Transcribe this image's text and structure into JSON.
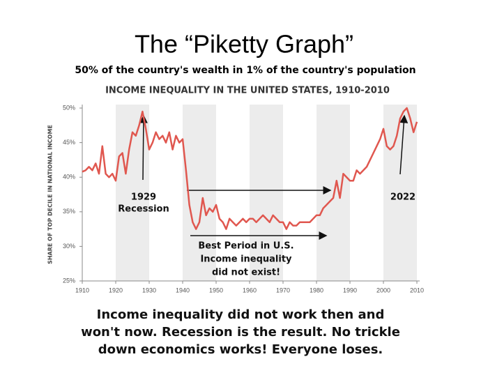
{
  "header": {
    "title": "The “Piketty Graph”",
    "subtitle": "50% of the country's wealth in 1% of the country's population"
  },
  "chart_data": {
    "type": "line",
    "title": "INCOME INEQUALITY IN THE UNITED STATES, 1910-2010",
    "y_label": "SHARE OF TOP DECILE IN NATIONAL INCOME",
    "color": "#e0574f",
    "x": [
      1910,
      1911,
      1912,
      1913,
      1914,
      1915,
      1916,
      1917,
      1918,
      1919,
      1920,
      1921,
      1922,
      1923,
      1924,
      1925,
      1926,
      1927,
      1928,
      1929,
      1930,
      1931,
      1932,
      1933,
      1934,
      1935,
      1936,
      1937,
      1938,
      1939,
      1940,
      1941,
      1942,
      1943,
      1944,
      1945,
      1946,
      1947,
      1948,
      1949,
      1950,
      1951,
      1952,
      1953,
      1954,
      1955,
      1956,
      1957,
      1958,
      1959,
      1960,
      1961,
      1962,
      1963,
      1964,
      1965,
      1966,
      1967,
      1968,
      1969,
      1970,
      1971,
      1972,
      1973,
      1974,
      1975,
      1976,
      1977,
      1978,
      1979,
      1980,
      1981,
      1982,
      1983,
      1984,
      1985,
      1986,
      1987,
      1988,
      1989,
      1990,
      1991,
      1992,
      1993,
      1994,
      1995,
      1996,
      1997,
      1998,
      1999,
      2000,
      2001,
      2002,
      2003,
      2004,
      2005,
      2006,
      2007,
      2008,
      2009,
      2010
    ],
    "values": [
      40.8,
      41,
      41.5,
      41,
      42,
      40.5,
      44.5,
      40.5,
      40,
      40.5,
      39.5,
      43,
      43.5,
      40.5,
      44,
      46.5,
      46,
      47.5,
      49.5,
      47,
      44,
      45,
      46.5,
      45.5,
      46,
      45,
      46.5,
      44,
      46,
      45,
      45.5,
      41,
      36,
      33.5,
      32.5,
      33.5,
      37,
      34.5,
      35.5,
      35,
      36,
      34,
      33.5,
      32.5,
      34,
      33.5,
      33,
      33.5,
      34,
      33.5,
      34,
      34,
      33.5,
      34,
      34.5,
      34,
      33.5,
      34.5,
      34,
      33.5,
      33.5,
      32.5,
      33.5,
      33,
      33,
      33.5,
      33.5,
      33.5,
      33.5,
      34,
      34.5,
      34.5,
      35.5,
      36,
      36.5,
      37,
      39.5,
      37,
      40.5,
      40,
      39.5,
      39.5,
      41,
      40.5,
      41,
      41.5,
      42.5,
      43.5,
      44.5,
      45.5,
      47,
      44.5,
      44,
      44.5,
      46,
      48.5,
      49.5,
      50,
      48.5,
      46.5,
      48
    ],
    "xlim": [
      1910,
      2010
    ],
    "xticks": [
      1910,
      1920,
      1930,
      1940,
      1950,
      1960,
      1970,
      1980,
      1990,
      2000,
      2010
    ],
    "ylim": [
      25,
      50
    ],
    "yticks": [
      {
        "value": 25,
        "label": "25%"
      },
      {
        "value": 30,
        "label": "30%"
      },
      {
        "value": 35,
        "label": "35%"
      },
      {
        "value": 40,
        "label": "40%"
      },
      {
        "value": 45,
        "label": "45%"
      },
      {
        "value": 50,
        "label": "50%"
      }
    ],
    "annotations": [
      {
        "text": [
          "1929",
          "Recession"
        ]
      },
      {
        "text": [
          "2022"
        ]
      },
      {
        "text": [
          "Best Period in U.S.",
          "Income inequality",
          "did not exist!"
        ]
      }
    ]
  },
  "footer": {
    "lines": [
      "Income inequality did not work then and",
      "won't now. Recession is the result. No trickle",
      "down economics works! Everyone loses."
    ]
  }
}
